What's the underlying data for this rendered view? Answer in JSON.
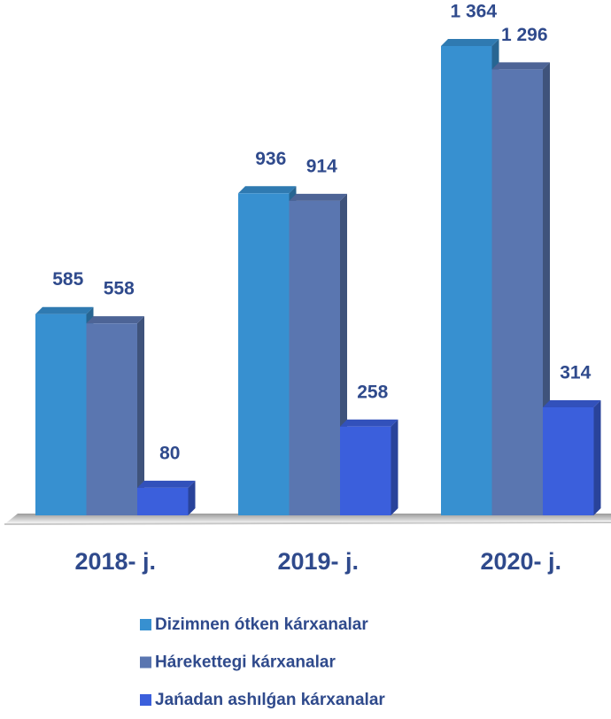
{
  "chart_data": {
    "type": "bar",
    "categories": [
      "2018- j.",
      "2019- j.",
      "2020- j."
    ],
    "series": [
      {
        "name": "Dizimnen ótken kárxanalar",
        "color": "#3790d0",
        "values": [
          585,
          936,
          1364
        ],
        "value_labels": [
          "585",
          "936",
          "1 364"
        ]
      },
      {
        "name": "Hárekettegi kárxanalar",
        "color": "#5a76b0",
        "values": [
          558,
          914,
          1296
        ],
        "value_labels": [
          "558",
          "914",
          "1 296"
        ]
      },
      {
        "name": "Jańadan ashılǵan kárxanalar",
        "color": "#3b5fdc",
        "values": [
          80,
          258,
          314
        ]
      }
    ]
  }
}
